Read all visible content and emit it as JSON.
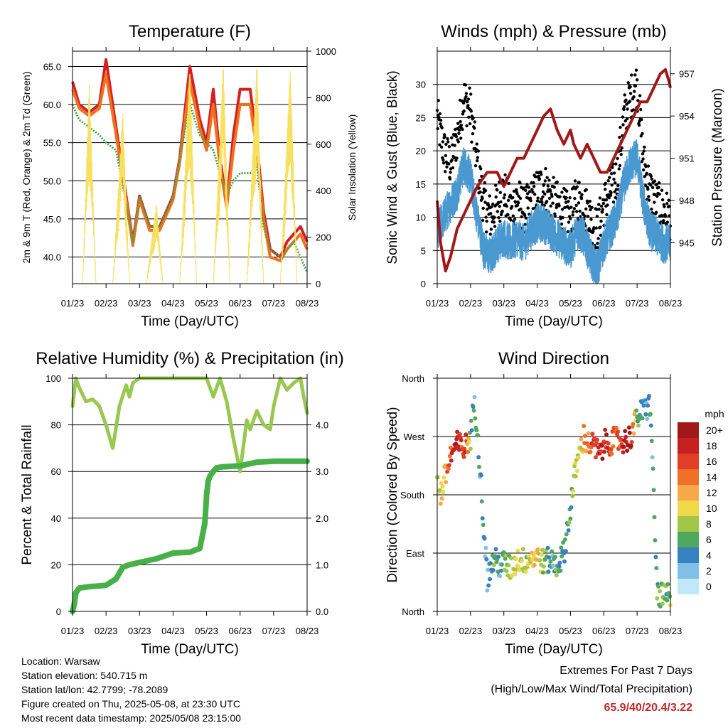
{
  "station": {
    "location": "Location: Warsaw",
    "elevation": "Station elevation: 540.715 m",
    "latlon": "Station lat/lon: 42.7799; -78.2089",
    "created": "Figure created on Thu, 2025-05-08, at 23:30 UTC",
    "timestamp": "Most recent data timestamp: 2025/05/08 23:15:00"
  },
  "extremes": {
    "heading": "Extremes For Past 7 Days",
    "subheading": "(High/Low/Max Wind/Total Precipitation)",
    "values": "65.9/40/20.4/3.22"
  },
  "colors": {
    "t2m": "#d42020",
    "t9m": "#f07020",
    "td2m": "#40a840",
    "solar": "#f8e060",
    "gust": "#000000",
    "wind": "#4a98d0",
    "pressure": "#a01818",
    "rh": "#98c850",
    "precip": "#48b048"
  },
  "chart_data": [
    {
      "type": "line",
      "title": "Temperature (F)",
      "xlabel": "Time (Day/UTC)",
      "ylabel": "2m & 9m T (Red, Orange) & 2m Td (Green)",
      "y2label": "Solar Insolation (Yellow)",
      "x_ticks": [
        "01/23",
        "02/23",
        "03/23",
        "04/23",
        "05/23",
        "06/23",
        "07/23",
        "08/23"
      ],
      "ylim": [
        36.5,
        67
      ],
      "y_ticks": [
        "65.0",
        "60.0",
        "55.0",
        "50.0",
        "45.0",
        "40.0"
      ],
      "y2lim": [
        0,
        1000
      ],
      "y2_ticks": [
        "0",
        "200",
        "400",
        "600",
        "800",
        "1000"
      ],
      "grid": true,
      "series": [
        {
          "name": "2m T",
          "color_key": "t2m",
          "x": [
            1.0,
            1.2,
            1.5,
            1.8,
            2.0,
            2.3,
            2.6,
            2.8,
            3.0,
            3.3,
            3.6,
            3.8,
            4.0,
            4.2,
            4.5,
            4.8,
            5.0,
            5.2,
            5.4,
            5.6,
            5.8,
            6.0,
            6.3,
            6.5,
            6.7,
            6.9,
            7.2,
            7.4,
            7.6,
            7.8,
            8.0
          ],
          "y": [
            63,
            60,
            59,
            60,
            65.9,
            57,
            48,
            42,
            48,
            44,
            44,
            46,
            48,
            53,
            65,
            58,
            55,
            62,
            53,
            47,
            56,
            62,
            62,
            55,
            46,
            41,
            40,
            42,
            43,
            44,
            42
          ]
        },
        {
          "name": "9m T",
          "color_key": "t9m",
          "x": [
            1.0,
            1.2,
            1.5,
            1.8,
            2.0,
            2.3,
            2.6,
            2.8,
            3.0,
            3.3,
            3.6,
            3.8,
            4.0,
            4.2,
            4.5,
            4.8,
            5.0,
            5.2,
            5.4,
            5.6,
            5.8,
            6.0,
            6.3,
            6.5,
            6.7,
            6.9,
            7.2,
            7.4,
            7.6,
            7.8,
            8.0
          ],
          "y": [
            62,
            59.5,
            58.5,
            59.5,
            64,
            56,
            47.5,
            41.5,
            47.5,
            43.5,
            43.5,
            45.5,
            47.5,
            52.5,
            63,
            57,
            54,
            60,
            52,
            46.5,
            54,
            60,
            60,
            54,
            45,
            40,
            39.5,
            41,
            42,
            43,
            41
          ]
        },
        {
          "name": "2m Td",
          "color_key": "td2m",
          "x": [
            1.0,
            1.2,
            1.5,
            1.8,
            2.0,
            2.3,
            2.6,
            2.8,
            3.0,
            3.3,
            3.6,
            3.8,
            4.0,
            4.2,
            4.5,
            4.8,
            5.0,
            5.2,
            5.4,
            5.6,
            5.8,
            6.0,
            6.3,
            6.5,
            6.7,
            6.9,
            7.2,
            7.4,
            7.6,
            7.8,
            8.0
          ],
          "y": [
            60,
            58,
            57,
            56,
            55,
            54,
            47,
            42,
            48,
            44,
            44,
            46,
            48,
            53,
            60,
            56,
            55,
            54,
            51,
            48,
            50,
            51,
            51,
            52,
            44,
            41,
            40,
            41,
            42,
            40,
            38
          ]
        },
        {
          "name": "Solar",
          "color_key": "solar",
          "axis": "y2",
          "x": [
            1.0,
            1.3,
            1.5,
            1.7,
            1.8,
            2.0,
            2.2,
            2.5,
            2.7,
            2.85,
            3.0,
            3.2,
            3.5,
            3.7,
            3.85,
            4.0,
            4.2,
            4.5,
            4.7,
            4.85,
            5.0,
            5.2,
            5.5,
            5.7,
            5.85,
            6.0,
            6.2,
            6.5,
            6.7,
            6.85,
            7.0,
            7.2,
            7.5,
            7.7,
            7.85,
            8.0
          ],
          "y": [
            0,
            0,
            880,
            0,
            0,
            0,
            0,
            750,
            0,
            0,
            0,
            0,
            350,
            0,
            0,
            0,
            0,
            950,
            0,
            0,
            0,
            0,
            960,
            0,
            0,
            0,
            0,
            970,
            0,
            0,
            0,
            0,
            950,
            0,
            0,
            0
          ]
        }
      ]
    },
    {
      "type": "scatter",
      "title": "Winds (mph) & Pressure (mb)",
      "xlabel": "Time (Day/UTC)",
      "ylabel": "Sonic Wind & Gust (Blue, Black)",
      "y2label": "Station Pressure (Maroon)",
      "x_ticks": [
        "01/23",
        "02/23",
        "03/23",
        "04/23",
        "05/23",
        "06/23",
        "07/23",
        "08/23"
      ],
      "ylim": [
        0,
        35
      ],
      "y_ticks": [
        "0",
        "5",
        "10",
        "15",
        "20",
        "25",
        "30"
      ],
      "y2lim": [
        942.1,
        958.6
      ],
      "y2_ticks": [
        "945",
        "948",
        "951",
        "954",
        "957"
      ],
      "grid": true,
      "series": [
        {
          "name": "Gust",
          "color_key": "gust",
          "x": [
            1.0,
            1.2,
            1.4,
            1.6,
            1.8,
            2.0,
            2.2,
            2.4,
            2.6,
            2.8,
            3.0,
            3.2,
            3.4,
            3.6,
            3.8,
            4.0,
            4.2,
            4.4,
            4.6,
            4.8,
            5.0,
            5.2,
            5.4,
            5.6,
            5.8,
            6.0,
            6.2,
            6.4,
            6.6,
            6.8,
            7.0,
            7.2,
            7.4,
            7.6,
            7.8,
            8.0
          ],
          "y": [
            25,
            20,
            18,
            22,
            28,
            26,
            18,
            12,
            10,
            12,
            14,
            11,
            13,
            11,
            12,
            14,
            15,
            13,
            12,
            11,
            10,
            13,
            12,
            10,
            8,
            12,
            14,
            16,
            25,
            28,
            30,
            18,
            14,
            12,
            11,
            10
          ]
        },
        {
          "name": "Wind",
          "color_key": "wind",
          "x": [
            1.0,
            1.2,
            1.4,
            1.6,
            1.8,
            2.0,
            2.2,
            2.4,
            2.6,
            2.8,
            3.0,
            3.2,
            3.4,
            3.6,
            3.8,
            4.0,
            4.2,
            4.4,
            4.6,
            4.8,
            5.0,
            5.2,
            5.4,
            5.6,
            5.8,
            6.0,
            6.2,
            6.4,
            6.6,
            6.8,
            7.0,
            7.2,
            7.4,
            7.6,
            7.8,
            8.0
          ],
          "y": [
            8,
            10,
            12,
            14,
            18,
            16,
            10,
            5,
            4,
            6,
            7,
            6,
            7,
            6,
            8,
            9,
            9,
            8,
            7,
            6,
            5,
            8,
            7,
            4,
            2,
            6,
            8,
            10,
            15,
            18,
            19,
            12,
            8,
            7,
            6,
            6
          ]
        },
        {
          "name": "Pressure",
          "color_key": "pressure",
          "axis": "y2",
          "x": [
            1.0,
            1.1,
            1.25,
            1.4,
            1.6,
            1.8,
            2.0,
            2.2,
            2.5,
            2.8,
            3.0,
            3.2,
            3.4,
            3.6,
            3.8,
            4.0,
            4.2,
            4.4,
            4.6,
            4.8,
            5.0,
            5.1,
            5.3,
            5.5,
            5.7,
            5.9,
            6.1,
            6.3,
            6.5,
            6.7,
            6.9,
            7.1,
            7.3,
            7.5,
            7.7,
            7.85,
            7.95,
            8.0
          ],
          "y": [
            948,
            945,
            943,
            944,
            946,
            947,
            948,
            949,
            950,
            950,
            949,
            950,
            951,
            951,
            952,
            953,
            954,
            954.5,
            953,
            952,
            953,
            952,
            951,
            952,
            951,
            950,
            950,
            951,
            952,
            953,
            954,
            955,
            955,
            956,
            957,
            957.3,
            956.5,
            956
          ]
        }
      ]
    },
    {
      "type": "line",
      "title": "Relative Humidity (%) & Precipitation (in)",
      "xlabel": "Time (Day/UTC)",
      "ylabel": "Percent & Total Rainfall",
      "x_ticks": [
        "01/23",
        "02/23",
        "03/23",
        "04/23",
        "05/23",
        "06/23",
        "07/23",
        "08/23"
      ],
      "ylim": [
        0,
        100
      ],
      "y_ticks": [
        "0",
        "20",
        "40",
        "60",
        "80",
        "100"
      ],
      "y2lim": [
        0,
        5
      ],
      "y2_ticks": [
        "0.0",
        "1.0",
        "2.0",
        "3.0",
        "4.0"
      ],
      "grid": true,
      "series": [
        {
          "name": "RH",
          "color_key": "rh",
          "x": [
            1.0,
            1.1,
            1.2,
            1.4,
            1.6,
            1.8,
            2.0,
            2.2,
            2.4,
            2.6,
            2.7,
            2.8,
            2.9,
            3.0,
            3.2,
            3.5,
            4.0,
            4.5,
            4.8,
            5.0,
            5.2,
            5.4,
            5.6,
            5.8,
            6.0,
            6.2,
            6.3,
            6.5,
            6.7,
            6.9,
            7.0,
            7.2,
            7.4,
            7.6,
            7.8,
            7.9,
            8.0
          ],
          "y": [
            88,
            100,
            96,
            90,
            91,
            88,
            80,
            70,
            88,
            97,
            92,
            98,
            99,
            100,
            100,
            100,
            100,
            100,
            100,
            100,
            92,
            100,
            90,
            74,
            60,
            82,
            78,
            86,
            80,
            78,
            88,
            100,
            95,
            98,
            100,
            92,
            85
          ]
        },
        {
          "name": "Precip",
          "color_key": "precip",
          "axis": "y2",
          "x": [
            1.0,
            1.05,
            1.1,
            1.2,
            1.5,
            2.0,
            2.3,
            2.5,
            2.7,
            3.0,
            3.5,
            4.0,
            4.5,
            4.8,
            4.95,
            5.0,
            5.05,
            5.1,
            5.2,
            5.3,
            5.5,
            6.0,
            6.5,
            7.0,
            7.5,
            8.0
          ],
          "y": [
            0,
            0.15,
            0.4,
            0.5,
            0.53,
            0.56,
            0.7,
            0.95,
            1.0,
            1.05,
            1.13,
            1.25,
            1.27,
            1.35,
            1.9,
            2.5,
            2.8,
            2.9,
            3.0,
            3.08,
            3.1,
            3.12,
            3.2,
            3.22,
            3.22,
            3.22
          ]
        }
      ]
    },
    {
      "type": "scatter",
      "title": "Wind Direction",
      "xlabel": "Time (Day/UTC)",
      "ylabel": "Direction (Colored By Speed)",
      "x_ticks": [
        "01/23",
        "02/23",
        "03/23",
        "04/23",
        "05/23",
        "06/23",
        "07/23",
        "08/23"
      ],
      "ylim": [
        0,
        360
      ],
      "y_ticks": [
        "North",
        "East",
        "South",
        "West",
        "North"
      ],
      "grid": true,
      "colorbar": {
        "title": "mph",
        "labels": [
          "20+",
          "18",
          "16",
          "14",
          "12",
          "10",
          "8",
          "6",
          "4",
          "2",
          "0"
        ],
        "colors": [
          "#a01818",
          "#c82020",
          "#e04028",
          "#f07028",
          "#f8a848",
          "#f0d848",
          "#a0c848",
          "#50a860",
          "#3880c0",
          "#80c0e8",
          "#c0e8f8"
        ]
      },
      "series": [
        {
          "name": "Direction",
          "x": [
            1.0,
            1.1,
            1.2,
            1.3,
            1.4,
            1.5,
            1.6,
            1.7,
            1.8,
            1.9,
            2.0,
            2.1,
            2.2,
            2.5,
            2.7,
            2.9,
            3.0,
            3.2,
            3.4,
            3.6,
            3.8,
            4.0,
            4.2,
            4.4,
            4.6,
            4.8,
            5.0,
            5.1,
            5.2,
            5.3,
            5.4,
            5.5,
            5.7,
            5.9,
            6.0,
            6.2,
            6.4,
            6.6,
            6.8,
            7.0,
            7.2,
            7.4,
            7.6,
            7.8,
            7.9,
            8.0
          ],
          "y": [
            200,
            180,
            200,
            220,
            240,
            250,
            258,
            255,
            250,
            260,
            270,
            320,
            290,
            50,
            80,
            70,
            75,
            65,
            80,
            78,
            82,
            85,
            75,
            80,
            70,
            90,
            160,
            200,
            230,
            250,
            270,
            260,
            255,
            240,
            260,
            262,
            265,
            262,
            270,
            300,
            310,
            320,
            30,
            20,
            25,
            15
          ],
          "speed": [
            8,
            10,
            12,
            14,
            16,
            18,
            18,
            16,
            18,
            14,
            6,
            4,
            4,
            4,
            6,
            4,
            6,
            8,
            10,
            8,
            10,
            10,
            8,
            4,
            6,
            4,
            6,
            8,
            10,
            10,
            12,
            14,
            16,
            18,
            18,
            16,
            14,
            18,
            20,
            6,
            4,
            4,
            6,
            8,
            6,
            8
          ]
        }
      ]
    }
  ]
}
